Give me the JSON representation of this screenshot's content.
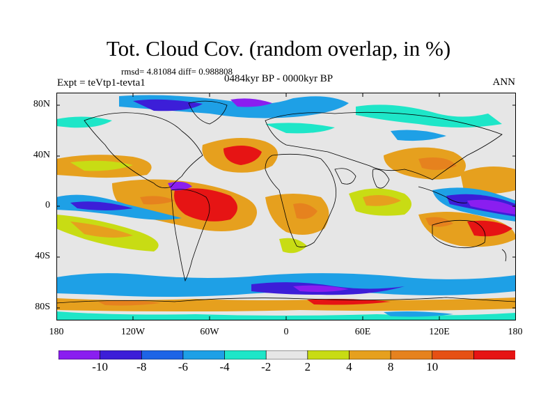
{
  "title": "Tot. Cloud Cov. (random overlap, in %)",
  "stats_line": "rmsd= 4.81084  diff= 0.988808",
  "experiment_label": "Expt = teVtp1-tevta1",
  "period_label": "0484kyr BP - 0000kyr BP",
  "season_label": "ANN",
  "lat_labels": [
    "80N",
    "40N",
    "0",
    "40S",
    "80S"
  ],
  "lon_labels": [
    "180",
    "120W",
    "60W",
    "0",
    "60E",
    "120E",
    "180"
  ],
  "colorbar": {
    "tick_labels": [
      "-10",
      "-8",
      "-6",
      "-4",
      "-2",
      "2",
      "4",
      "8",
      "10"
    ],
    "colors": [
      "#8a1ef0",
      "#3c1ed8",
      "#1e64e6",
      "#1ea0e6",
      "#1ee6c8",
      "#e6e6e6",
      "#c8dc14",
      "#e6a01e",
      "#e6821e",
      "#e65014",
      "#e61414"
    ]
  },
  "map_data": {
    "projection": "cylindrical-equidistant",
    "lon_range": [
      -180,
      180
    ],
    "lat_range": [
      -90,
      90
    ],
    "variable": "Tot. Cloud Cov. (random overlap, in %)"
  }
}
